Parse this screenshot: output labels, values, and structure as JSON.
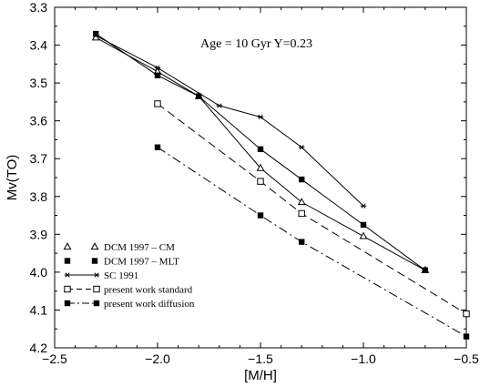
{
  "chart_data": {
    "type": "line",
    "title": "",
    "annotation": "Age = 10 Gyr  Y=0.23",
    "xlabel": "[M/H]",
    "ylabel": "Mv(TO)",
    "xlim": [
      -2.5,
      -0.5
    ],
    "ylim": [
      3.3,
      4.2
    ],
    "y_inverted": true,
    "grid": false,
    "legend_position": "bottom-left",
    "xticks": [
      "-2.5",
      "-2.0",
      "-1.5",
      "-1.0",
      "-0.5"
    ],
    "yticks": [
      "3.3",
      "3.4",
      "3.5",
      "3.6",
      "3.7",
      "3.8",
      "3.9",
      "4.0",
      "4.1",
      "4.2"
    ],
    "series": [
      {
        "name": "DCM 1997 – CM",
        "marker": "open-triangle",
        "line": "solid",
        "x": [
          -2.3,
          -2.0,
          -1.8,
          -1.5,
          -1.3,
          -1.0,
          -0.7
        ],
        "y": [
          3.38,
          3.47,
          3.535,
          3.725,
          3.815,
          3.905,
          3.995
        ]
      },
      {
        "name": "DCM 1997 – MLT",
        "marker": "filled-square",
        "line": "solid",
        "x": [
          -2.3,
          -2.0,
          -1.8,
          -1.5,
          -1.3,
          -1.0,
          -0.7
        ],
        "y": [
          3.37,
          3.48,
          3.535,
          3.675,
          3.755,
          3.875,
          3.995
        ]
      },
      {
        "name": "SC 1991",
        "marker": "star",
        "line": "solid",
        "x": [
          -2.3,
          -2.0,
          -1.7,
          -1.5,
          -1.3,
          -1.0
        ],
        "y": [
          3.375,
          3.46,
          3.56,
          3.59,
          3.67,
          3.825
        ]
      },
      {
        "name": "present work standard",
        "marker": "open-square",
        "line": "dashed",
        "x": [
          -2.0,
          -1.5,
          -1.3,
          -0.5
        ],
        "y": [
          3.555,
          3.76,
          3.845,
          4.11
        ]
      },
      {
        "name": "present work diffusion",
        "marker": "filled-square",
        "line": "dashdot",
        "x": [
          -2.0,
          -1.5,
          -1.3,
          -0.5
        ],
        "y": [
          3.67,
          3.85,
          3.92,
          4.17
        ]
      }
    ]
  }
}
